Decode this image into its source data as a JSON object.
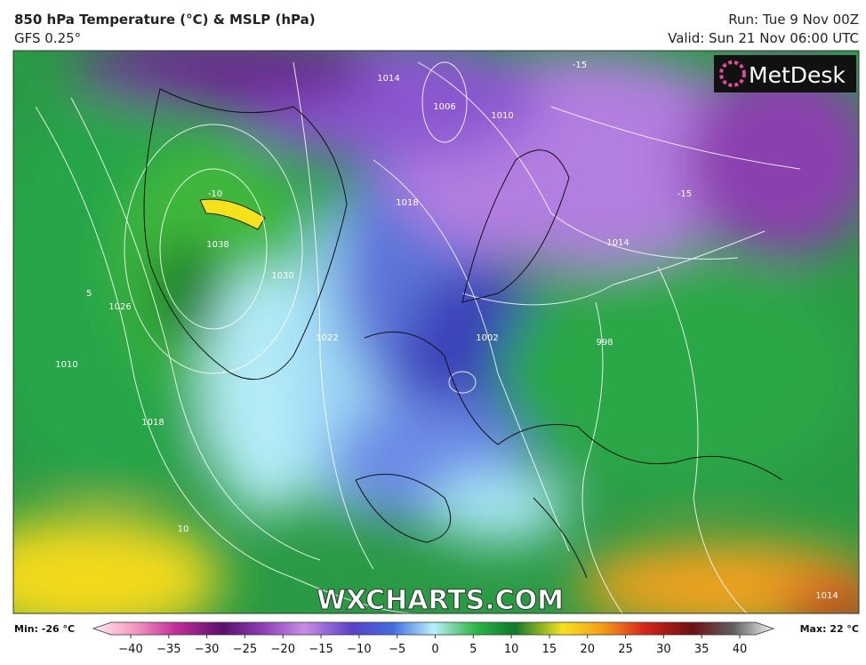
{
  "header": {
    "title": "850 hPa Temperature (°C) & MSLP (hPa)",
    "model": "GFS 0.25°",
    "run": "Run: Tue 9 Nov 00Z",
    "valid": "Valid: Sun 21 Nov 06:00 UTC"
  },
  "map": {
    "logo": "MetDesk",
    "watermark": "WXCHARTS.COM",
    "contour_labels": [
      "1038",
      "1030",
      "1026",
      "1022",
      "1018",
      "1018",
      "1014",
      "1014",
      "1010",
      "1010",
      "1006",
      "1002",
      "998",
      "-15",
      "-15",
      "-10",
      "10",
      "5",
      "1014"
    ]
  },
  "colorbar": {
    "min_label": "Min: -26 °C",
    "max_label": "Max: 22 °C",
    "ticks": [
      -40,
      -35,
      -30,
      -25,
      -20,
      -15,
      -10,
      -5,
      0,
      5,
      10,
      15,
      20,
      25,
      30,
      35,
      40
    ]
  }
}
